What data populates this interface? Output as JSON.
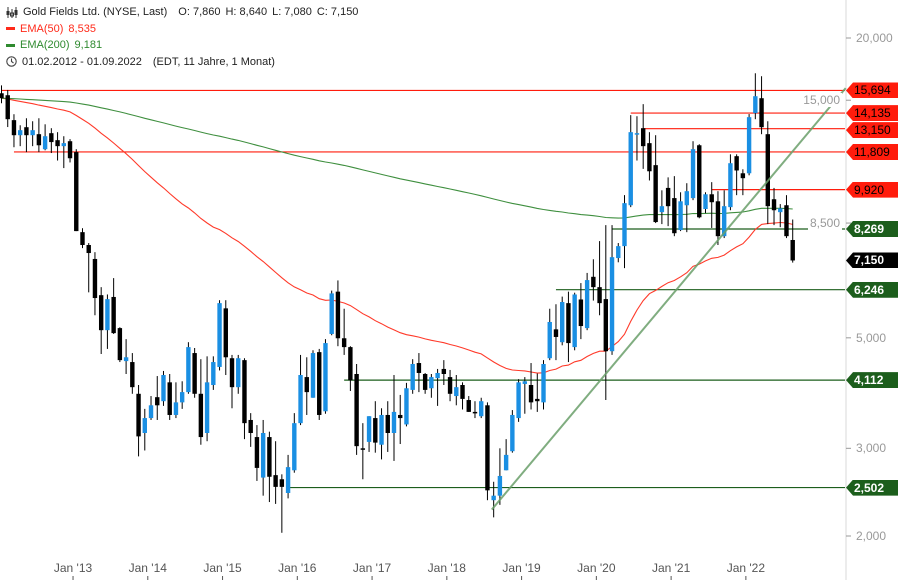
{
  "legend": {
    "title": "Gold Fields Ltd. (NYSE, Last)",
    "o": "O: 7,860",
    "h": "H: 8,640",
    "l": "L: 7,080",
    "c": "C: 7,150",
    "ema50_label": "EMA(50)",
    "ema50_value": "8,535",
    "ema200_label": "EMA(200)",
    "ema200_value": "9,181",
    "date_range": "01.02.2012 - 01.09.2022",
    "range_info": "(EDT, 11 Jahre, 1 Monat)"
  },
  "chart_data": {
    "type": "candlestick",
    "title": "Gold Fields Ltd. (NYSE, Last)",
    "scale": "log",
    "ylim": [
      2000,
      20000
    ],
    "first_month": "2012-02",
    "y_ticks": [
      {
        "value": 20000,
        "label": "20,000"
      },
      {
        "value": 15000,
        "label": "15,000"
      },
      {
        "value": 8500,
        "label": "8,500"
      },
      {
        "value": 5000,
        "label": "5,000"
      },
      {
        "value": 3000,
        "label": "3,000"
      },
      {
        "value": 2000,
        "label": "2,000"
      }
    ],
    "x_ticks": [
      {
        "month_index": 11,
        "label": "Jan '13"
      },
      {
        "month_index": 23,
        "label": "Jan '14"
      },
      {
        "month_index": 35,
        "label": "Jan '15"
      },
      {
        "month_index": 47,
        "label": "Jan '16"
      },
      {
        "month_index": 59,
        "label": "Jan '17"
      },
      {
        "month_index": 71,
        "label": "Jan '18"
      },
      {
        "month_index": 83,
        "label": "Jan '19"
      },
      {
        "month_index": 95,
        "label": "Jan '20"
      },
      {
        "month_index": 107,
        "label": "Jan '21"
      },
      {
        "month_index": 119,
        "label": "Jan '22"
      }
    ],
    "levels": [
      {
        "value": 15694,
        "label": "15,694",
        "type": "resistance",
        "start_index": 0
      },
      {
        "value": 14135,
        "label": "14,135",
        "type": "resistance",
        "start_index": 101
      },
      {
        "value": 13150,
        "label": "13,150",
        "type": "resistance",
        "start_index": 103
      },
      {
        "value": 11809,
        "label": "11,809",
        "type": "resistance",
        "start_index": 2
      },
      {
        "value": 9920,
        "label": "9,920",
        "type": "resistance",
        "start_index": 114
      },
      {
        "value": 8269,
        "label": "8,269",
        "type": "support",
        "start_index": 98
      },
      {
        "value": 6246,
        "label": "6,246",
        "type": "support",
        "start_index": 89
      },
      {
        "value": 4112,
        "label": "4,112",
        "type": "support",
        "start_index": 55
      },
      {
        "value": 2502,
        "label": "2,502",
        "type": "support",
        "start_index": 46
      }
    ],
    "last": {
      "value": 7150,
      "label": "7,150"
    },
    "trendline": {
      "from": [
        78.7,
        2260
      ],
      "to": [
        135.5,
        15860
      ]
    },
    "ema_periods": [
      50,
      200
    ],
    "colors": {
      "up": "#1a8fe3",
      "down": "#000000",
      "ema50": "#ff3a2a",
      "ema200": "#3f8f3f",
      "resistance": "#ff1c0c",
      "support": "#1c5e1c",
      "trend": "#6a9f6a"
    },
    "ohlc": [
      [
        15490,
        16070,
        14790,
        15140
      ],
      [
        15350,
        15730,
        13250,
        13740
      ],
      [
        13680,
        14060,
        12070,
        12760
      ],
      [
        12760,
        13360,
        12130,
        13060
      ],
      [
        13240,
        13800,
        11800,
        12760
      ],
      [
        12760,
        13610,
        12130,
        13060
      ],
      [
        12820,
        13800,
        11800,
        12180
      ],
      [
        11960,
        13420,
        11900,
        12700
      ],
      [
        12880,
        13180,
        11750,
        12360
      ],
      [
        12470,
        12940,
        11350,
        12130
      ],
      [
        12130,
        12700,
        10960,
        12300
      ],
      [
        12410,
        12530,
        11250,
        11470
      ],
      [
        11800,
        11960,
        8190,
        8190
      ],
      [
        8150,
        8300,
        7570,
        7680
      ],
      [
        7680,
        7750,
        6170,
        7400
      ],
      [
        7200,
        7430,
        5550,
        6010
      ],
      [
        6090,
        6320,
        4640,
        5180
      ],
      [
        5180,
        6110,
        4750,
        5980
      ],
      [
        6040,
        6590,
        5090,
        5110
      ],
      [
        5230,
        5250,
        4470,
        4510
      ],
      [
        4490,
        4970,
        4230,
        4570
      ],
      [
        4470,
        4660,
        3860,
        3980
      ],
      [
        3860,
        4020,
        2890,
        3170
      ],
      [
        3220,
        3600,
        2970,
        3450
      ],
      [
        3450,
        3820,
        3420,
        3660
      ],
      [
        3800,
        4190,
        3420,
        3660
      ],
      [
        3730,
        4290,
        3650,
        4210
      ],
      [
        4070,
        4230,
        3420,
        3500
      ],
      [
        3500,
        4070,
        3450,
        3710
      ],
      [
        3710,
        4090,
        3600,
        3890
      ],
      [
        3890,
        4900,
        3860,
        4790
      ],
      [
        4660,
        4770,
        3790,
        3860
      ],
      [
        3860,
        4530,
        3050,
        3160
      ],
      [
        3220,
        4590,
        3100,
        4070
      ],
      [
        4020,
        4590,
        3930,
        4470
      ],
      [
        4370,
        5950,
        4300,
        5870
      ],
      [
        5730,
        5950,
        4210,
        4570
      ],
      [
        4550,
        4620,
        3610,
        3980
      ],
      [
        3980,
        4620,
        3860,
        4550
      ],
      [
        4510,
        4550,
        3130,
        3370
      ],
      [
        3420,
        3530,
        3020,
        3220
      ],
      [
        3160,
        3340,
        2580,
        2740
      ],
      [
        2620,
        3420,
        2410,
        3220
      ],
      [
        3160,
        3240,
        2340,
        2630
      ],
      [
        2650,
        3100,
        2320,
        2510
      ],
      [
        2600,
        2660,
        2030,
        2510
      ],
      [
        2440,
        2910,
        2380,
        2750
      ],
      [
        2710,
        3530,
        2680,
        3370
      ],
      [
        3370,
        4620,
        3340,
        4210
      ],
      [
        4170,
        4570,
        3500,
        3890
      ],
      [
        3790,
        4720,
        3790,
        4660
      ],
      [
        4680,
        4750,
        3420,
        3500
      ],
      [
        3560,
        4970,
        3520,
        4880
      ],
      [
        5090,
        6220,
        5060,
        6140
      ],
      [
        6190,
        6520,
        4810,
        4990
      ],
      [
        4990,
        5720,
        4620,
        4790
      ],
      [
        4790,
        4810,
        3910,
        4110
      ],
      [
        4230,
        4430,
        2910,
        3030
      ],
      [
        3000,
        3370,
        2600,
        2990
      ],
      [
        3090,
        3480,
        2950,
        3480
      ],
      [
        3450,
        3730,
        2940,
        3080
      ],
      [
        3050,
        3610,
        2850,
        3500
      ],
      [
        3500,
        3730,
        2950,
        3220
      ],
      [
        3220,
        4210,
        2830,
        3550
      ],
      [
        3500,
        3840,
        3060,
        3450
      ],
      [
        3350,
        4060,
        3320,
        3960
      ],
      [
        3930,
        4530,
        3860,
        4430
      ],
      [
        4450,
        4660,
        3890,
        4250
      ],
      [
        4230,
        4250,
        3860,
        3930
      ],
      [
        3960,
        4230,
        3790,
        4170
      ],
      [
        4150,
        4330,
        3650,
        4250
      ],
      [
        4330,
        4510,
        4020,
        4230
      ],
      [
        4170,
        4310,
        3730,
        3860
      ],
      [
        3820,
        4210,
        3660,
        3980
      ],
      [
        4020,
        4070,
        3590,
        3770
      ],
      [
        3750,
        3820,
        3550,
        3550
      ],
      [
        3550,
        3730,
        3450,
        3530
      ],
      [
        3480,
        3790,
        3450,
        3730
      ],
      [
        3660,
        3710,
        2360,
        2470
      ],
      [
        2360,
        2570,
        2180,
        2410
      ],
      [
        2410,
        3000,
        2310,
        2640
      ],
      [
        2710,
        3130,
        2710,
        2910
      ],
      [
        2960,
        3580,
        2940,
        3500
      ],
      [
        3450,
        4130,
        3390,
        4070
      ],
      [
        4040,
        4170,
        3520,
        4090
      ],
      [
        4020,
        4450,
        3590,
        3710
      ],
      [
        3770,
        4240,
        3550,
        3730
      ],
      [
        3710,
        4510,
        3590,
        4430
      ],
      [
        4550,
        5720,
        4510,
        5380
      ],
      [
        5200,
        5840,
        4510,
        5020
      ],
      [
        4900,
        6050,
        4830,
        5900
      ],
      [
        5870,
        6190,
        4470,
        4880
      ],
      [
        4790,
        6160,
        4720,
        6110
      ],
      [
        5970,
        6440,
        4970,
        5280
      ],
      [
        5230,
        6750,
        5180,
        6530
      ],
      [
        6630,
        7190,
        5940,
        6320
      ],
      [
        6320,
        7820,
        5550,
        5870
      ],
      [
        5980,
        8420,
        3750,
        4700
      ],
      [
        4700,
        8420,
        4620,
        7260
      ],
      [
        7230,
        7750,
        7090,
        7640
      ],
      [
        7640,
        9670,
        6900,
        9320
      ],
      [
        9230,
        14000,
        9150,
        12940
      ],
      [
        12880,
        13930,
        11350,
        12880
      ],
      [
        13180,
        14730,
        10920,
        12130
      ],
      [
        12300,
        12940,
        10350,
        10800
      ],
      [
        11110,
        12760,
        8500,
        8540
      ],
      [
        8940,
        9890,
        8460,
        9190
      ],
      [
        10000,
        10500,
        8380,
        9190
      ],
      [
        9540,
        10560,
        8000,
        8110
      ],
      [
        8230,
        9800,
        8190,
        9400
      ],
      [
        9230,
        10220,
        8150,
        9850
      ],
      [
        9540,
        12410,
        9450,
        11960
      ],
      [
        12180,
        12240,
        8690,
        8730
      ],
      [
        9070,
        9800,
        8900,
        9710
      ],
      [
        9710,
        10270,
        8310,
        9360
      ],
      [
        9400,
        9850,
        7680,
        8000
      ],
      [
        8000,
        9890,
        7930,
        9190
      ],
      [
        9150,
        11680,
        9020,
        11210
      ],
      [
        11580,
        11680,
        9670,
        10840
      ],
      [
        10700,
        10900,
        9670,
        10460
      ],
      [
        10700,
        14070,
        10600,
        13870
      ],
      [
        14130,
        16990,
        13740,
        15280
      ],
      [
        15140,
        16760,
        12820,
        13240
      ],
      [
        12820,
        13610,
        8460,
        9190
      ],
      [
        9490,
        10000,
        8420,
        9020
      ],
      [
        8940,
        9280,
        8340,
        9100
      ],
      [
        9230,
        9670,
        7930,
        8000
      ],
      [
        7860,
        8640,
        7080,
        7150
      ]
    ]
  }
}
